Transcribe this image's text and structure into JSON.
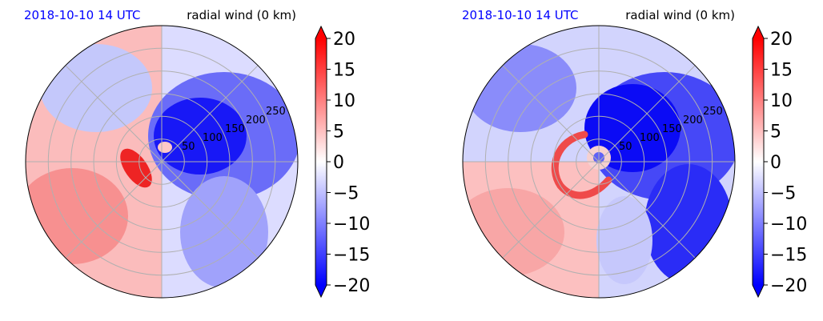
{
  "chart_data": [
    {
      "type": "heatmap",
      "projection": "polar",
      "title_left": "2018-10-10 14 UTC",
      "title_right": "radial wind (0 km)",
      "radial_ticks": [
        "50",
        "100",
        "150",
        "200",
        "250"
      ],
      "radial_tick_values": [
        50,
        100,
        150,
        200,
        250
      ],
      "r_max": 300,
      "angular_grid_deg": [
        0,
        45,
        90,
        135,
        180,
        225,
        270,
        315
      ],
      "grid": true,
      "field_summary": {
        "west_half": "positive (red)",
        "east_half": "negative (blue)",
        "core_minimum_approx": -20,
        "inner_maximum_approx": 15
      },
      "colorbar": {
        "min": -20,
        "max": 20,
        "ticks": [
          "20",
          "15",
          "10",
          "5",
          "0",
          "−5",
          "−10",
          "−15",
          "−20"
        ],
        "tick_values": [
          20,
          15,
          10,
          5,
          0,
          -5,
          -10,
          -15,
          -20
        ],
        "colormap": "bwr",
        "extend": "both"
      }
    },
    {
      "type": "heatmap",
      "projection": "polar",
      "title_left": "2018-10-10 14 UTC",
      "title_right": "radial wind (0 km)",
      "radial_ticks": [
        "50",
        "100",
        "150",
        "200",
        "250"
      ],
      "radial_tick_values": [
        50,
        100,
        150,
        200,
        250
      ],
      "r_max": 300,
      "angular_grid_deg": [
        0,
        45,
        90,
        135,
        180,
        225,
        270,
        315
      ],
      "grid": true,
      "field_summary": {
        "west_half": "positive (red)",
        "east_half": "negative (blue)",
        "core_minimum_approx": -20,
        "inner_maximum_approx": 12
      },
      "colorbar": {
        "min": -20,
        "max": 20,
        "ticks": [
          "20",
          "15",
          "10",
          "5",
          "0",
          "−5",
          "−10",
          "−15",
          "−20"
        ],
        "tick_values": [
          20,
          15,
          10,
          5,
          0,
          -5,
          -10,
          -15,
          -20
        ],
        "colormap": "bwr",
        "extend": "both"
      }
    }
  ],
  "colors": {
    "positive": "#ff0000",
    "zero": "#ffffff",
    "negative": "#0000ff",
    "grid": "#b0b0b0",
    "title_date": "#0000ff"
  }
}
